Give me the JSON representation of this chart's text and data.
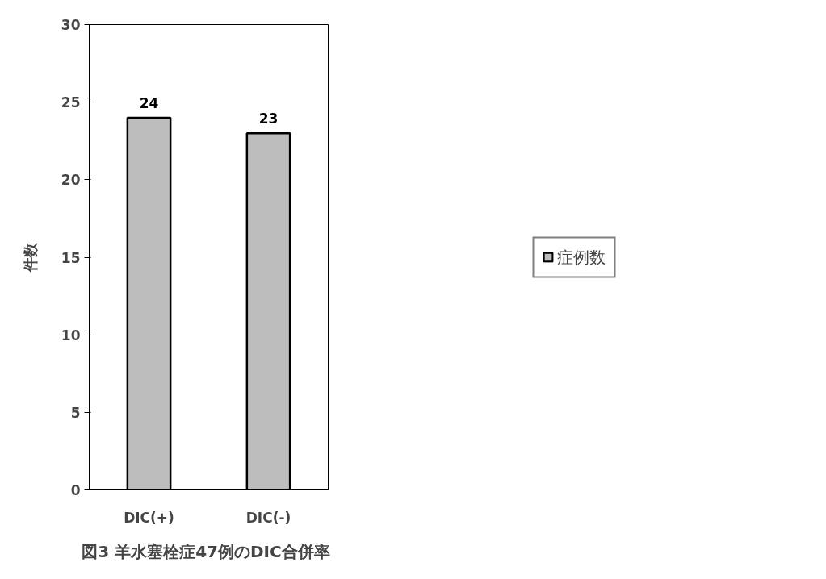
{
  "chart_data": {
    "type": "bar",
    "title": "図3  羊水塞栓症47例のDIC合併率",
    "ylabel": "件数",
    "categories": [
      "DIC(+)",
      "DIC(-)"
    ],
    "series": [
      {
        "name": "症例数",
        "color": "#bdbdbd",
        "values": [
          24,
          23
        ]
      }
    ],
    "ylim": [
      0,
      30
    ],
    "yticks": [
      0,
      5,
      10,
      15,
      20,
      25,
      30
    ],
    "grid": false,
    "legend": "right",
    "data_labels": true
  }
}
